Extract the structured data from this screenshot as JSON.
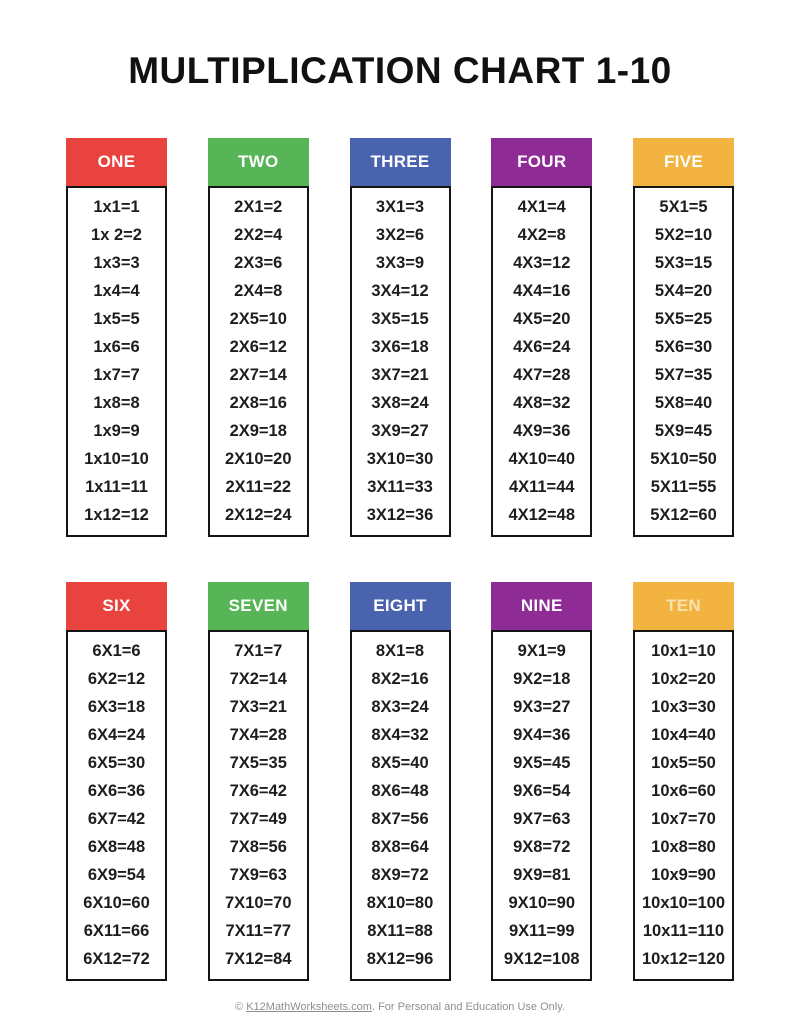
{
  "page": {
    "title": "MULTIPLICATION CHART 1-10"
  },
  "palette": {
    "red": "#e9433f",
    "green": "#57b457",
    "blue": "#4a63ae",
    "purple": "#8e2b94",
    "yellow": "#f2b340",
    "header_text": "#ffffff",
    "faint_header_text": "#f9e0b0",
    "border": "#141414"
  },
  "tables": [
    {
      "name": "ONE",
      "header_bg": "#e9433f",
      "header_text": "#ffffff",
      "facts": [
        "1x1=1",
        "1x 2=2",
        "1x3=3",
        "1x4=4",
        "1x5=5",
        "1x6=6",
        "1x7=7",
        "1x8=8",
        "1x9=9",
        "1x10=10",
        "1x11=11",
        "1x12=12"
      ]
    },
    {
      "name": "TWO",
      "header_bg": "#57b457",
      "header_text": "#ffffff",
      "facts": [
        "2X1=2",
        "2X2=4",
        "2X3=6",
        "2X4=8",
        "2X5=10",
        "2X6=12",
        "2X7=14",
        "2X8=16",
        "2X9=18",
        "2X10=20",
        "2X11=22",
        "2X12=24"
      ]
    },
    {
      "name": "THREE",
      "header_bg": "#4a63ae",
      "header_text": "#ffffff",
      "facts": [
        "3X1=3",
        "3X2=6",
        "3X3=9",
        "3X4=12",
        "3X5=15",
        "3X6=18",
        "3X7=21",
        "3X8=24",
        "3X9=27",
        "3X10=30",
        "3X11=33",
        "3X12=36"
      ]
    },
    {
      "name": "FOUR",
      "header_bg": "#8e2b94",
      "header_text": "#ffffff",
      "facts": [
        "4X1=4",
        "4X2=8",
        "4X3=12",
        "4X4=16",
        "4X5=20",
        "4X6=24",
        "4X7=28",
        "4X8=32",
        "4X9=36",
        "4X10=40",
        "4X11=44",
        "4X12=48"
      ]
    },
    {
      "name": "FIVE",
      "header_bg": "#f2b340",
      "header_text": "#ffffff",
      "facts": [
        "5X1=5",
        "5X2=10",
        "5X3=15",
        "5X4=20",
        "5X5=25",
        "5X6=30",
        "5X7=35",
        "5X8=40",
        "5X9=45",
        "5X10=50",
        "5X11=55",
        "5X12=60"
      ]
    },
    {
      "name": "SIX",
      "header_bg": "#e9433f",
      "header_text": "#ffffff",
      "facts": [
        "6X1=6",
        "6X2=12",
        "6X3=18",
        "6X4=24",
        "6X5=30",
        "6X6=36",
        "6X7=42",
        "6X8=48",
        "6X9=54",
        "6X10=60",
        "6X11=66",
        "6X12=72"
      ]
    },
    {
      "name": "SEVEN",
      "header_bg": "#57b457",
      "header_text": "#ffffff",
      "facts": [
        "7X1=7",
        "7X2=14",
        "7X3=21",
        "7X4=28",
        "7X5=35",
        "7X6=42",
        "7X7=49",
        "7X8=56",
        "7X9=63",
        "7X10=70",
        "7X11=77",
        "7X12=84"
      ]
    },
    {
      "name": "EIGHT",
      "header_bg": "#4a63ae",
      "header_text": "#ffffff",
      "facts": [
        "8X1=8",
        "8X2=16",
        "8X3=24",
        "8X4=32",
        "8X5=40",
        "8X6=48",
        "8X7=56",
        "8X8=64",
        "8X9=72",
        "8X10=80",
        "8X11=88",
        "8X12=96"
      ]
    },
    {
      "name": "NINE",
      "header_bg": "#8e2b94",
      "header_text": "#ffffff",
      "facts": [
        "9X1=9",
        "9X2=18",
        "9X3=27",
        "9X4=36",
        "9X5=45",
        "9X6=54",
        "9X7=63",
        "9X8=72",
        "9X9=81",
        "9X10=90",
        "9X11=99",
        "9X12=108"
      ]
    },
    {
      "name": "TEN",
      "header_bg": "#f2b340",
      "header_text": "#f9e0b0",
      "facts": [
        "10x1=10",
        "10x2=20",
        "10x3=30",
        "10x4=40",
        "10x5=50",
        "10x6=60",
        "10x7=70",
        "10x8=80",
        "10x9=90",
        "10x10=100",
        "10x11=110",
        "10x12=120"
      ]
    }
  ],
  "footer": {
    "prefix": "© ",
    "link": "K12MathWorksheets.com",
    "suffix": ". For Personal and Education Use Only."
  }
}
